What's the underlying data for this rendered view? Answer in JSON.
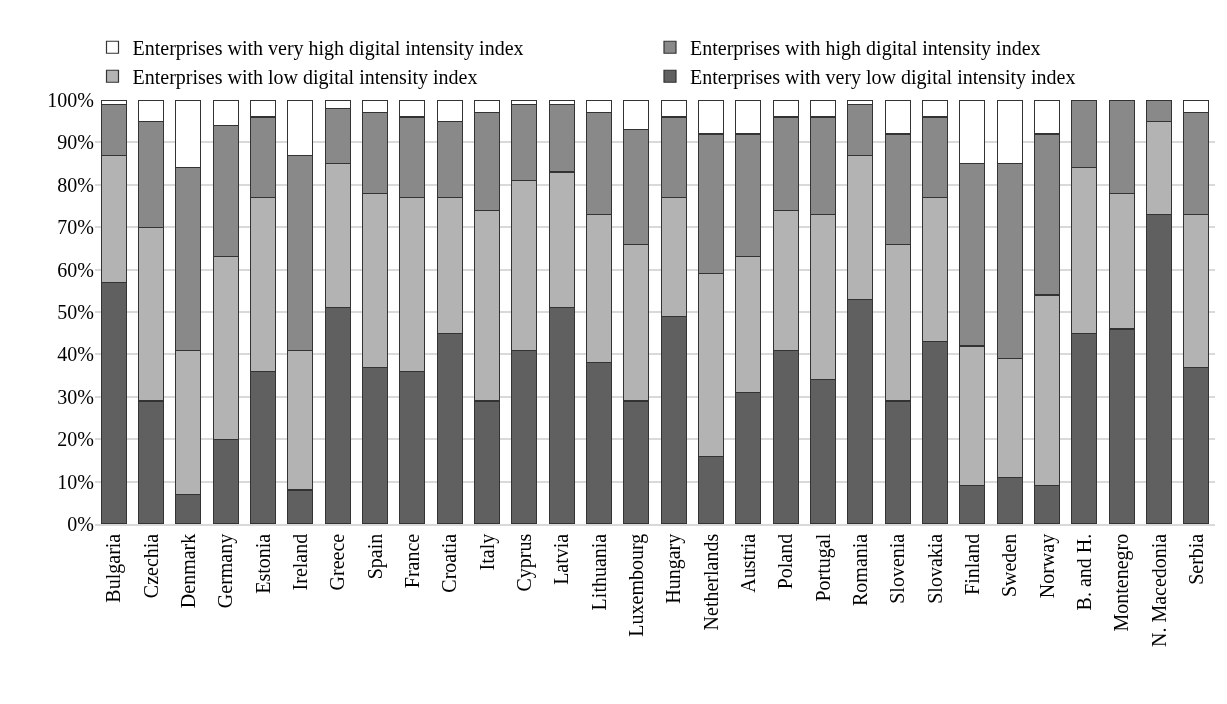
{
  "chart_data": {
    "type": "bar",
    "stacked": true,
    "categories": [
      "Bulgaria",
      "Czechia",
      "Denmark",
      "Germany",
      "Estonia",
      "Ireland",
      "Greece",
      "Spain",
      "France",
      "Croatia",
      "Italy",
      "Cyprus",
      "Latvia",
      "Lithuania",
      "Luxembourg",
      "Hungary",
      "Netherlands",
      "Austria",
      "Poland",
      "Portugal",
      "Romania",
      "Slovenia",
      "Slovakia",
      "Finland",
      "Sweden",
      "Norway",
      "B. and H.",
      "Montenegro",
      "N. Macedonia",
      "Serbia"
    ],
    "series": [
      {
        "name": "Enterprises with very low digital intensity index",
        "color": "#606060",
        "values": [
          57,
          29,
          7,
          20,
          36,
          8,
          51,
          37,
          36,
          45,
          29,
          41,
          51,
          38,
          29,
          49,
          16,
          31,
          41,
          34,
          53,
          29,
          43,
          9,
          11,
          9,
          45,
          46,
          73,
          37
        ]
      },
      {
        "name": "Enterprises with low digital intensity index",
        "color": "#b3b3b3",
        "values": [
          30,
          41,
          34,
          43,
          41,
          33,
          34,
          41,
          41,
          32,
          45,
          40,
          32,
          35,
          37,
          28,
          43,
          32,
          33,
          39,
          34,
          37,
          34,
          33,
          28,
          45,
          39,
          32,
          22,
          36
        ]
      },
      {
        "name": "Enterprises with high digital intensity index",
        "color": "#898989",
        "values": [
          12,
          25,
          43,
          31,
          19,
          46,
          13,
          19,
          19,
          18,
          23,
          18,
          16,
          24,
          27,
          19,
          33,
          29,
          22,
          23,
          12,
          26,
          19,
          43,
          46,
          38,
          16,
          22,
          5,
          24
        ]
      },
      {
        "name": "Enterprises with very high digital intensity index",
        "color": "#ffffff",
        "values": [
          1,
          5,
          16,
          6,
          4,
          13,
          2,
          3,
          4,
          5,
          3,
          1,
          1,
          3,
          7,
          4,
          8,
          8,
          4,
          4,
          1,
          8,
          4,
          15,
          15,
          8,
          null,
          null,
          null,
          3
        ]
      }
    ],
    "ylim": [
      0,
      100
    ],
    "yticks": [
      {
        "value": 0,
        "label": "0%"
      },
      {
        "value": 10,
        "label": "10%"
      },
      {
        "value": 20,
        "label": "20%"
      },
      {
        "value": 30,
        "label": "30%"
      },
      {
        "value": 40,
        "label": "40%"
      },
      {
        "value": 50,
        "label": "50%"
      },
      {
        "value": 60,
        "label": "60%"
      },
      {
        "value": 70,
        "label": "70%"
      },
      {
        "value": 80,
        "label": "80%"
      },
      {
        "value": 90,
        "label": "90%"
      },
      {
        "value": 100,
        "label": "100%"
      }
    ],
    "grid": "y",
    "legend": "top"
  }
}
